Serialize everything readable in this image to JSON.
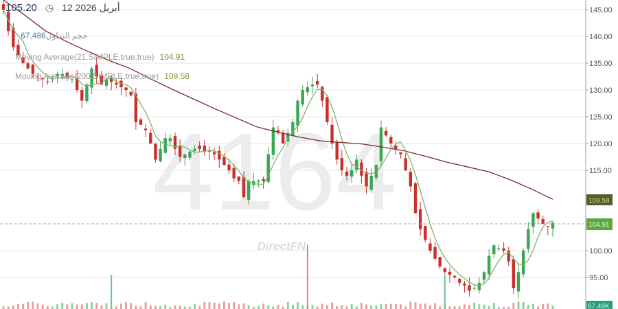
{
  "header": {
    "last_price": "105.20",
    "date": "12 2026 أبريل",
    "clock_icon": "clock-icon"
  },
  "legend": {
    "volume_label": "حجم التداول",
    "volume_value": "67,486",
    "ma21_label": "Moving Average(21,SIMPLE,true,true)",
    "ma21_value": "104.91",
    "ma200_label": "Moving Average(200,SIMPLE,true,true)",
    "ma200_value": "109.58"
  },
  "watermark": {
    "symbol": "4164",
    "brand": "DirectFN"
  },
  "colors": {
    "up": "#3aa655",
    "down": "#c9302c",
    "ma21": "#7bb36a",
    "ma200": "#7a2a2a",
    "ma21_badge": "#5aa845",
    "ma200_badge": "#5a5a2a",
    "volume_badge": "#2a9a7a",
    "grid": "#e6e6e6"
  },
  "chart_data": {
    "type": "candlestick",
    "ylim": [
      91,
      147
    ],
    "yticks": [
      "145.00",
      "140.00",
      "135.00",
      "130.00",
      "125.00",
      "120.00",
      "115.00",
      "100.00",
      "95.00"
    ],
    "ytick_values": [
      145,
      140,
      135,
      130,
      125,
      120,
      115,
      100,
      95
    ],
    "closes": [
      145,
      141,
      138,
      136.5,
      135,
      134,
      133,
      132.5,
      132,
      131.5,
      132,
      133,
      133,
      132.5,
      132,
      130,
      128,
      131,
      134,
      132.5,
      131,
      132,
      131.5,
      131,
      130.5,
      130,
      129,
      124,
      123.5,
      122.5,
      120,
      117,
      119,
      121,
      121,
      119,
      117.5,
      118,
      118.5,
      119,
      119,
      118.5,
      118.5,
      118,
      117,
      116,
      115,
      113.5,
      113,
      110,
      113,
      113,
      113,
      113,
      118,
      123,
      122,
      120,
      122,
      124,
      128,
      130,
      130.5,
      131,
      131,
      128,
      124,
      120,
      117,
      115,
      114,
      115,
      117,
      114,
      112,
      114,
      116,
      123,
      121.5,
      120,
      119,
      118,
      115,
      112,
      107,
      104,
      102,
      100,
      98.5,
      97,
      96,
      95.5,
      95,
      94,
      93.5,
      92.5,
      93,
      94,
      96,
      99,
      101,
      100.5,
      100,
      98,
      93,
      96,
      100,
      104,
      107,
      106,
      105,
      104.5,
      105.2
    ],
    "ma200": [
      146.8,
      144,
      141,
      139,
      137.2,
      135.5,
      134,
      132,
      130.1,
      128.3,
      126.5,
      124.8,
      123.1,
      122.1,
      121.2,
      120.5,
      120.2,
      119.9,
      119.3,
      118.6,
      117.6,
      116.5,
      115.6,
      114.7,
      113.2,
      111.5,
      109.58
    ],
    "volume_spikes": [
      {
        "index": 22,
        "relative": 0.45
      },
      {
        "index": 62,
        "relative": 0.85
      },
      {
        "index": 90,
        "relative": 0.45
      }
    ],
    "last_ma21": "104.91",
    "last_ma200": "109.58",
    "volume_axis_label": "67.49K",
    "grid": true
  }
}
